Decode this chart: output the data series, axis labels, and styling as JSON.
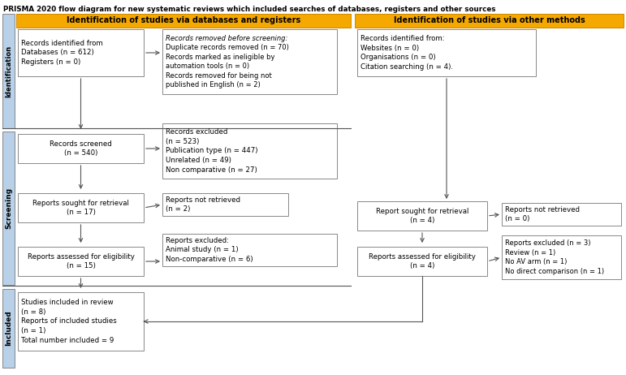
{
  "title": "PRISMA 2020 flow diagram for new systematic reviews which included searches of databases, registers and other sources",
  "header_left": "Identification of studies via databases and registers",
  "header_right": "Identification of studies via other methods",
  "header_color": "#F5A800",
  "box_border_color": "#888888",
  "box_fill": "#FFFFFF",
  "side_label_fill": "#B8D0E8",
  "boxes": {
    "db_records": "Records identified from\nDatabases (n = 612)\nRegisters (n = 0)",
    "removed_before_line1": "Records removed ",
    "removed_before_line1b": "before screening:",
    "removed_before_rest": "Duplicate records removed (n = 70)\nRecords marked as ineligible by\nautomation tools (n = 0)\nRecords removed for being not\npublished in English (n = 2)",
    "removed_before": "Records removed before screening:\nDuplicate records removed (n = 70)\nRecords marked as ineligible by\nautomation tools (n = 0)\nRecords removed for being not\npublished in English (n = 2)",
    "other_records": "Records identified from:\nWebsites (n = 0)\nOrganisations (n = 0)\nCitation searching (n = 4).",
    "screened": "Records screened\n(n = 540)",
    "excluded": "Records excluded\n(n = 523)\nPublication type (n = 447)\nUnrelated (n = 49)\nNon comparative (n = 27)",
    "retrieval_left": "Reports sought for retrieval\n(n = 17)",
    "not_retrieved_left": "Reports not retrieved\n(n = 2)",
    "eligibility_left": "Reports assessed for eligibility\n(n = 15)",
    "excluded_reports": "Reports excluded:\nAnimal study (n = 1)\nNon-comparative (n = 6)",
    "retrieval_right": "Report sought for retrieval\n(n = 4)",
    "not_retrieved_right": "Reports not retrieved\n(n = 0)",
    "eligibility_right": "Reports assessed for eligibility\n(n = 4)",
    "excluded_right": "Reports excluded (n = 3)\nReview (n = 1)\nNo AV arm (n = 1)\nNo direct comparison (n = 1)",
    "included": "Studies included in review\n(n = 8)\nReports of included studies\n(n = 1)\nTotal number included = 9"
  },
  "figsize": [
    7.71,
    4.62
  ],
  "dpi": 100
}
